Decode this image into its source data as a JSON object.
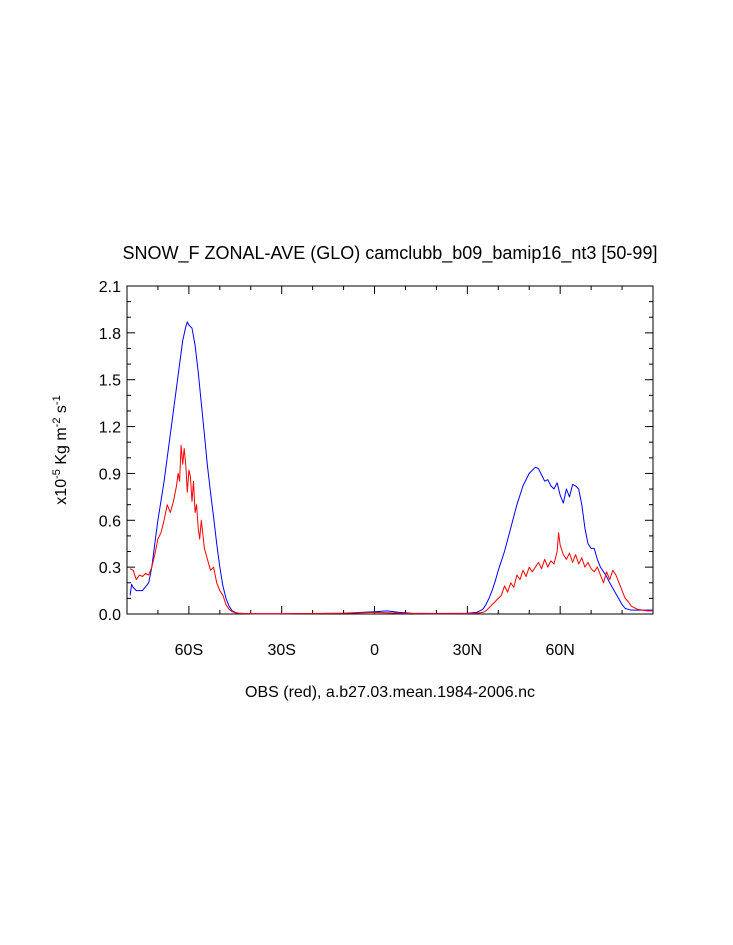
{
  "chart_data": {
    "type": "line",
    "title": "SNOW_F ZONAL-AVE (GLO) camclubb_b09_bamip16_nt3 [50-99]",
    "xlabel": "OBS (red), a.b27.03.mean.1984-2006.nc",
    "ylabel": {
      "prefix": "x10",
      "exp1": "-5",
      "unit1": " Kg m",
      "exp2": "-2",
      "unit2": " s",
      "exp3": "-1"
    },
    "xlim": [
      -80,
      90
    ],
    "ylim": [
      0,
      2.1
    ],
    "x_ticks": [
      {
        "value": -60,
        "label": "60S"
      },
      {
        "value": -30,
        "label": "30S"
      },
      {
        "value": 0,
        "label": "0"
      },
      {
        "value": 30,
        "label": "30N"
      },
      {
        "value": 60,
        "label": "60N"
      }
    ],
    "y_ticks": [
      {
        "value": 0.0,
        "label": "0.0"
      },
      {
        "value": 0.3,
        "label": "0.3"
      },
      {
        "value": 0.6,
        "label": "0.6"
      },
      {
        "value": 0.9,
        "label": "0.9"
      },
      {
        "value": 1.2,
        "label": "1.2"
      },
      {
        "value": 1.5,
        "label": "1.5"
      },
      {
        "value": 1.8,
        "label": "1.8"
      },
      {
        "value": 2.1,
        "label": "2.1"
      }
    ],
    "grid": false,
    "series": [
      {
        "color": "#0000ff",
        "x": [
          -79,
          -78.5,
          -78,
          -77,
          -75,
          -73,
          -72,
          -71,
          -70,
          -68,
          -66,
          -64,
          -62,
          -61,
          -60.5,
          -60,
          -59,
          -58,
          -57,
          -56,
          -55,
          -54,
          -53,
          -52,
          -51,
          -50,
          -49,
          -48,
          -47,
          -46,
          -45,
          -44,
          -42,
          -40,
          -30,
          -10,
          0,
          4,
          8,
          12,
          20,
          30,
          33,
          35,
          36,
          37,
          38,
          39,
          40,
          42,
          44,
          46,
          48,
          50,
          52,
          53,
          54,
          55,
          56,
          57,
          58,
          59,
          60,
          61,
          62,
          63,
          64,
          65,
          66,
          67,
          68,
          69,
          70,
          71,
          72,
          73,
          74,
          75,
          76,
          78,
          80,
          81,
          82,
          83,
          85,
          90
        ],
        "y": [
          0.12,
          0.19,
          0.17,
          0.15,
          0.15,
          0.2,
          0.3,
          0.45,
          0.6,
          0.85,
          1.15,
          1.45,
          1.75,
          1.84,
          1.87,
          1.85,
          1.83,
          1.72,
          1.55,
          1.35,
          1.15,
          0.95,
          0.78,
          0.62,
          0.45,
          0.3,
          0.18,
          0.1,
          0.05,
          0.02,
          0.01,
          0.005,
          0.003,
          0.002,
          0.002,
          0.005,
          0.015,
          0.02,
          0.01,
          0.005,
          0.003,
          0.005,
          0.01,
          0.03,
          0.06,
          0.1,
          0.15,
          0.21,
          0.28,
          0.4,
          0.55,
          0.7,
          0.82,
          0.9,
          0.94,
          0.93,
          0.89,
          0.85,
          0.86,
          0.82,
          0.8,
          0.84,
          0.76,
          0.71,
          0.8,
          0.75,
          0.83,
          0.82,
          0.8,
          0.7,
          0.55,
          0.45,
          0.42,
          0.42,
          0.35,
          0.3,
          0.27,
          0.24,
          0.2,
          0.13,
          0.06,
          0.035,
          0.03,
          0.025,
          0.025,
          0.025
        ]
      },
      {
        "color": "#ff0000",
        "x": [
          -79,
          -78,
          -77,
          -76,
          -75,
          -74,
          -73,
          -72,
          -71,
          -70,
          -69,
          -68,
          -67,
          -66,
          -65,
          -64,
          -63.5,
          -63,
          -62.5,
          -62,
          -61.5,
          -61,
          -60.5,
          -60,
          -59.5,
          -59,
          -58.5,
          -58,
          -57.5,
          -57,
          -56.5,
          -56,
          -55,
          -54,
          -53,
          -52,
          -51,
          -50,
          -49,
          -48,
          -47,
          -46,
          -45,
          -44,
          -42,
          -40,
          -30,
          -10,
          0,
          4,
          10,
          20,
          30,
          33,
          35,
          36,
          37,
          38,
          39,
          40,
          41,
          42,
          43,
          44,
          45,
          46,
          47,
          48,
          49,
          50,
          51,
          52,
          53,
          54,
          55,
          56,
          57,
          58,
          59,
          59.5,
          60,
          61,
          62,
          63,
          64,
          65,
          66,
          67,
          68,
          69,
          70,
          71,
          72,
          73,
          74,
          75,
          76,
          77,
          78,
          79,
          80,
          81,
          82,
          83,
          85,
          88,
          90
        ],
        "y": [
          0.29,
          0.28,
          0.22,
          0.25,
          0.24,
          0.26,
          0.25,
          0.3,
          0.38,
          0.48,
          0.52,
          0.6,
          0.7,
          0.65,
          0.72,
          0.82,
          0.9,
          0.85,
          1.08,
          0.96,
          1.06,
          0.95,
          0.78,
          0.92,
          0.88,
          0.72,
          0.85,
          0.65,
          0.7,
          0.55,
          0.48,
          0.6,
          0.42,
          0.35,
          0.28,
          0.3,
          0.2,
          0.15,
          0.12,
          0.06,
          0.03,
          0.015,
          0.008,
          0.005,
          0.003,
          0.002,
          0.001,
          0.005,
          0.01,
          0.008,
          0.004,
          0.002,
          0.003,
          0.005,
          0.01,
          0.02,
          0.04,
          0.06,
          0.08,
          0.1,
          0.12,
          0.18,
          0.14,
          0.2,
          0.17,
          0.25,
          0.22,
          0.28,
          0.24,
          0.3,
          0.27,
          0.3,
          0.33,
          0.29,
          0.35,
          0.3,
          0.34,
          0.32,
          0.4,
          0.52,
          0.44,
          0.38,
          0.35,
          0.39,
          0.33,
          0.38,
          0.32,
          0.36,
          0.3,
          0.33,
          0.29,
          0.27,
          0.3,
          0.25,
          0.2,
          0.27,
          0.22,
          0.28,
          0.25,
          0.2,
          0.15,
          0.1,
          0.08,
          0.05,
          0.03,
          0.02,
          0.02
        ]
      }
    ]
  }
}
